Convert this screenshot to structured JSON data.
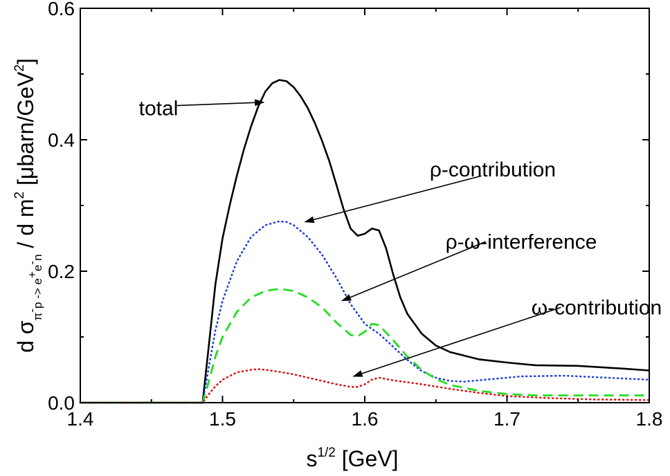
{
  "chart_data": {
    "type": "line",
    "xlabel": {
      "base": "s",
      "sup": "1/2",
      "rest": " [GeV]"
    },
    "ylabel": {
      "p1": "d σ",
      "sub": "π",
      "sub_sup1": "-",
      "sub_mid": "p -> e",
      "sub_sup2": "+",
      "sub_mid2": "e",
      "sub_sup3": "-",
      "sub_end": "n",
      "p2": " / d m",
      "p2_sup": "2",
      "p3": "  [μbarn/GeV",
      "p3_sup": "2",
      "p4": "]"
    },
    "xlim": [
      1.4,
      1.8
    ],
    "ylim": [
      0.0,
      0.6
    ],
    "x_ticks": [
      "1.4",
      "1.5",
      "1.6",
      "1.7",
      "1.8"
    ],
    "y_ticks": [
      "0.0",
      "0.2",
      "0.4",
      "0.6"
    ],
    "grid": false,
    "series": [
      {
        "name": "total",
        "color": "#000000",
        "style": "solid",
        "points": [
          [
            1.4,
            0
          ],
          [
            1.486,
            0
          ],
          [
            1.49,
            0.08
          ],
          [
            1.495,
            0.18
          ],
          [
            1.5,
            0.25
          ],
          [
            1.505,
            0.3
          ],
          [
            1.51,
            0.345
          ],
          [
            1.515,
            0.385
          ],
          [
            1.52,
            0.42
          ],
          [
            1.525,
            0.45
          ],
          [
            1.53,
            0.473
          ],
          [
            1.535,
            0.486
          ],
          [
            1.54,
            0.491
          ],
          [
            1.545,
            0.489
          ],
          [
            1.55,
            0.48
          ],
          [
            1.555,
            0.466
          ],
          [
            1.56,
            0.448
          ],
          [
            1.565,
            0.425
          ],
          [
            1.57,
            0.398
          ],
          [
            1.575,
            0.368
          ],
          [
            1.58,
            0.332
          ],
          [
            1.585,
            0.295
          ],
          [
            1.59,
            0.265
          ],
          [
            1.595,
            0.254
          ],
          [
            1.6,
            0.257
          ],
          [
            1.605,
            0.265
          ],
          [
            1.61,
            0.262
          ],
          [
            1.615,
            0.235
          ],
          [
            1.62,
            0.195
          ],
          [
            1.625,
            0.16
          ],
          [
            1.63,
            0.135
          ],
          [
            1.64,
            0.105
          ],
          [
            1.65,
            0.087
          ],
          [
            1.66,
            0.077
          ],
          [
            1.68,
            0.066
          ],
          [
            1.7,
            0.061
          ],
          [
            1.72,
            0.057
          ],
          [
            1.75,
            0.056
          ],
          [
            1.78,
            0.052
          ],
          [
            1.8,
            0.049
          ]
        ]
      },
      {
        "name": "ρ-contribution",
        "color": "#1f3fe0",
        "style": "dotted",
        "points": [
          [
            1.4,
            0
          ],
          [
            1.486,
            0
          ],
          [
            1.49,
            0.05
          ],
          [
            1.495,
            0.11
          ],
          [
            1.5,
            0.155
          ],
          [
            1.51,
            0.215
          ],
          [
            1.52,
            0.252
          ],
          [
            1.53,
            0.27
          ],
          [
            1.54,
            0.276
          ],
          [
            1.545,
            0.275
          ],
          [
            1.55,
            0.27
          ],
          [
            1.56,
            0.252
          ],
          [
            1.57,
            0.225
          ],
          [
            1.58,
            0.19
          ],
          [
            1.59,
            0.15
          ],
          [
            1.6,
            0.12
          ],
          [
            1.605,
            0.112
          ],
          [
            1.61,
            0.105
          ],
          [
            1.62,
            0.085
          ],
          [
            1.63,
            0.065
          ],
          [
            1.64,
            0.048
          ],
          [
            1.65,
            0.038
          ],
          [
            1.66,
            0.033
          ],
          [
            1.67,
            0.032
          ],
          [
            1.69,
            0.036
          ],
          [
            1.71,
            0.04
          ],
          [
            1.74,
            0.041
          ],
          [
            1.77,
            0.038
          ],
          [
            1.8,
            0.035
          ]
        ]
      },
      {
        "name": "ρ-ω-interference",
        "color": "#22dd22",
        "style": "dashed",
        "points": [
          [
            1.4,
            0
          ],
          [
            1.486,
            0
          ],
          [
            1.49,
            0.03
          ],
          [
            1.495,
            0.07
          ],
          [
            1.5,
            0.1
          ],
          [
            1.51,
            0.138
          ],
          [
            1.52,
            0.16
          ],
          [
            1.53,
            0.17
          ],
          [
            1.54,
            0.173
          ],
          [
            1.55,
            0.17
          ],
          [
            1.56,
            0.16
          ],
          [
            1.57,
            0.145
          ],
          [
            1.58,
            0.122
          ],
          [
            1.59,
            0.103
          ],
          [
            1.595,
            0.101
          ],
          [
            1.6,
            0.108
          ],
          [
            1.605,
            0.12
          ],
          [
            1.61,
            0.118
          ],
          [
            1.62,
            0.095
          ],
          [
            1.63,
            0.07
          ],
          [
            1.64,
            0.05
          ],
          [
            1.65,
            0.036
          ],
          [
            1.66,
            0.027
          ],
          [
            1.68,
            0.018
          ],
          [
            1.7,
            0.013
          ],
          [
            1.72,
            0.011
          ],
          [
            1.76,
            0.011
          ],
          [
            1.8,
            0.011
          ]
        ]
      },
      {
        "name": "ω-contribution",
        "color": "#dd1111",
        "style": "dotted",
        "points": [
          [
            1.4,
            0
          ],
          [
            1.486,
            0
          ],
          [
            1.49,
            0.012
          ],
          [
            1.495,
            0.025
          ],
          [
            1.5,
            0.035
          ],
          [
            1.51,
            0.046
          ],
          [
            1.52,
            0.05
          ],
          [
            1.525,
            0.051
          ],
          [
            1.53,
            0.05
          ],
          [
            1.54,
            0.047
          ],
          [
            1.55,
            0.043
          ],
          [
            1.56,
            0.038
          ],
          [
            1.57,
            0.033
          ],
          [
            1.58,
            0.028
          ],
          [
            1.59,
            0.024
          ],
          [
            1.595,
            0.024
          ],
          [
            1.6,
            0.028
          ],
          [
            1.605,
            0.035
          ],
          [
            1.61,
            0.038
          ],
          [
            1.62,
            0.034
          ],
          [
            1.64,
            0.028
          ],
          [
            1.66,
            0.021
          ],
          [
            1.68,
            0.015
          ],
          [
            1.7,
            0.01
          ],
          [
            1.73,
            0.007
          ],
          [
            1.76,
            0.005
          ],
          [
            1.8,
            0.004
          ]
        ]
      }
    ],
    "annotations": [
      {
        "label": "total",
        "text_pos": [
          1.455,
          0.448
        ],
        "arrow_from": [
          1.468,
          0.452
        ],
        "arrow_to": [
          1.529,
          0.457
        ]
      },
      {
        "label": "ρ-contribution",
        "text_pos": [
          1.69,
          0.355
        ],
        "arrow_from": [
          1.682,
          0.345
        ],
        "arrow_to": [
          1.558,
          0.275
        ]
      },
      {
        "label": "ρ-ω-interference",
        "text_pos": [
          1.71,
          0.245
        ],
        "arrow_from": [
          1.685,
          0.245
        ],
        "arrow_to": [
          1.584,
          0.155
        ]
      },
      {
        "label": "ω-contribution",
        "text_pos": [
          1.763,
          0.145
        ],
        "arrow_from": [
          1.738,
          0.145
        ],
        "arrow_to": [
          1.592,
          0.04
        ]
      }
    ]
  }
}
